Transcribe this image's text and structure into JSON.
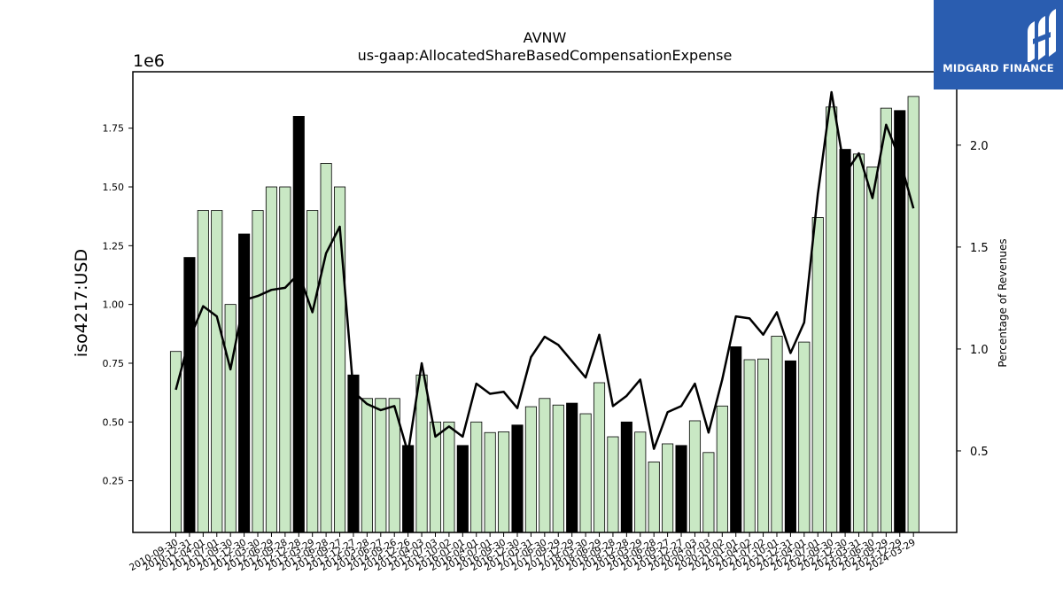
{
  "chart_data": {
    "type": "bar",
    "title": "AVNW",
    "subtitle": "us-gaap:AllocatedShareBasedCompensationExpense",
    "ylabel": "iso4217:USD",
    "y_offset_label": "1e6",
    "y2label": "Percentage of Revenues",
    "ylim": [
      30000,
      1990000
    ],
    "y2lim": [
      0.1,
      2.36
    ],
    "yticks": [
      {
        "value": 250000,
        "label": "0.25"
      },
      {
        "value": 500000,
        "label": "0.50"
      },
      {
        "value": 750000,
        "label": "0.75"
      },
      {
        "value": 1000000,
        "label": "1.00"
      },
      {
        "value": 1250000,
        "label": "1.25"
      },
      {
        "value": 1500000,
        "label": "1.50"
      },
      {
        "value": 1750000,
        "label": "1.75"
      }
    ],
    "y2ticks": [
      {
        "value": 0.5,
        "label": "0.5"
      },
      {
        "value": 1.0,
        "label": "1.0"
      },
      {
        "value": 1.5,
        "label": "1.5"
      },
      {
        "value": 2.0,
        "label": "2.0"
      }
    ],
    "categories": [
      "2010-09-30",
      "2010-12-31",
      "2011-04-01",
      "2011-07-01",
      "2011-09-30",
      "2011-12-30",
      "2012-03-30",
      "2012-06-29",
      "2012-09-28",
      "2012-12-28",
      "2013-03-29",
      "2013-06-28",
      "2013-09-27",
      "2013-12-27",
      "2014-03-28",
      "2014-06-27",
      "2014-09-26",
      "2014-12-26",
      "2015-04-03",
      "2015-07-03",
      "2015-10-02",
      "2016-01-01",
      "2016-04-01",
      "2016-07-01",
      "2016-09-30",
      "2016-12-30",
      "2017-03-31",
      "2017-06-30",
      "2017-09-29",
      "2017-12-29",
      "2018-03-30",
      "2018-06-29",
      "2018-09-28",
      "2018-12-28",
      "2019-03-29",
      "2019-06-28",
      "2019-09-27",
      "2019-12-27",
      "2020-04-03",
      "2020-07-03",
      "2020-10-02",
      "2021-01-01",
      "2021-04-02",
      "2021-07-02",
      "2021-10-01",
      "2021-12-31",
      "2022-04-01",
      "2022-07-01",
      "2022-09-30",
      "2022-12-30",
      "2023-03-31",
      "2023-06-30",
      "2023-09-29",
      "2023-12-29",
      "2024-03-29"
    ],
    "series": [
      {
        "type": "bar",
        "values": [
          800000,
          1200000,
          1400000,
          1400000,
          1000000,
          1300000,
          1400000,
          1500000,
          1500000,
          1800000,
          1400000,
          1600000,
          1500000,
          700000,
          600000,
          600000,
          600000,
          400000,
          700000,
          500000,
          500000,
          400000,
          500000,
          455000,
          458000,
          487000,
          565000,
          600000,
          572000,
          580000,
          535000,
          667000,
          437000,
          500000,
          457000,
          330000,
          407000,
          400000,
          505000,
          370000,
          568000,
          820000,
          765000,
          768000,
          865000,
          760000,
          840000,
          1370000,
          1840000,
          1660000,
          1640000,
          1585000,
          1835000,
          1825000,
          1885000
        ],
        "highlight_q4": [
          false,
          true,
          false,
          false,
          false,
          true,
          false,
          false,
          false,
          true,
          false,
          false,
          false,
          true,
          false,
          false,
          false,
          true,
          false,
          false,
          false,
          true,
          false,
          false,
          false,
          true,
          false,
          false,
          false,
          true,
          false,
          false,
          false,
          true,
          false,
          false,
          false,
          true,
          false,
          false,
          false,
          true,
          false,
          false,
          false,
          true,
          false,
          false,
          false,
          true,
          false,
          false,
          false,
          true,
          false
        ]
      },
      {
        "type": "line",
        "axis": "right",
        "values": [
          0.8,
          1.05,
          1.21,
          1.16,
          0.9,
          1.24,
          1.26,
          1.29,
          1.3,
          1.37,
          1.18,
          1.47,
          1.6,
          0.79,
          0.73,
          0.7,
          0.72,
          0.49,
          0.93,
          0.57,
          0.62,
          0.57,
          0.83,
          0.78,
          0.79,
          0.71,
          0.96,
          1.06,
          1.02,
          0.94,
          0.86,
          1.07,
          0.72,
          0.77,
          0.85,
          0.51,
          0.69,
          0.72,
          0.83,
          0.59,
          0.85,
          1.16,
          1.15,
          1.07,
          1.18,
          0.98,
          1.13,
          1.76,
          2.26,
          1.86,
          1.96,
          1.74,
          2.1,
          1.93,
          1.69
        ]
      }
    ],
    "colors": {
      "bar": "#c9e8c4",
      "bar_highlight": "#000000",
      "line": "#000000",
      "logo_bg": "#2a5db0"
    },
    "grid": false,
    "legend": "none"
  },
  "logo": {
    "text": "MIDGARD FINANCE",
    "icon": "midgard-logo-icon"
  }
}
